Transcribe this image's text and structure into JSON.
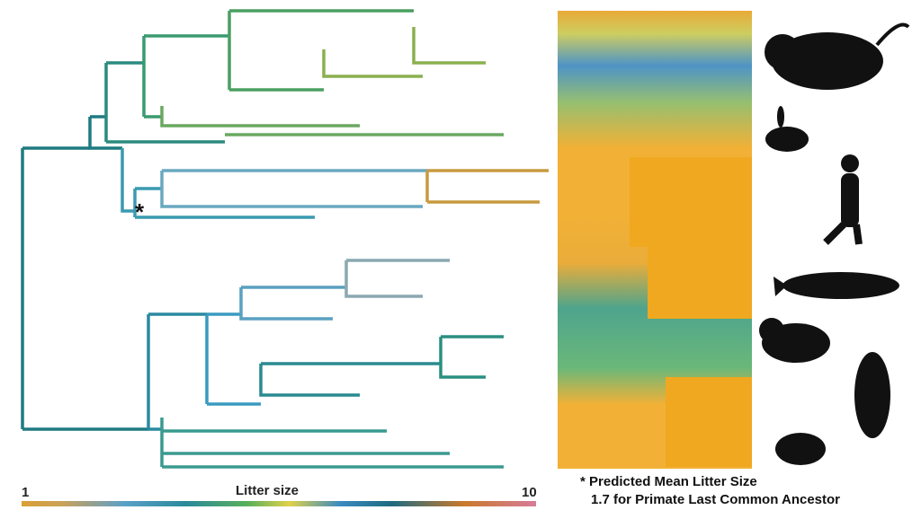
{
  "legend": {
    "title": "Litter size",
    "min_label": "1",
    "max_label": "10",
    "gradient_colors": [
      "#d9a032",
      "#5aa0c8",
      "#2a8a9a",
      "#5ab05a",
      "#e0d24a",
      "#3a8ac0",
      "#1f6a80",
      "#c97a2a",
      "#d87a9a"
    ]
  },
  "annotation": {
    "marker": "*",
    "line1": "* Predicted Mean Litter Size",
    "line2": "1.7 for Primate Last Common Ancestor"
  },
  "silhouettes": [
    "rodent",
    "rabbit",
    "human",
    "whale",
    "bear",
    "bat",
    "mole"
  ]
}
